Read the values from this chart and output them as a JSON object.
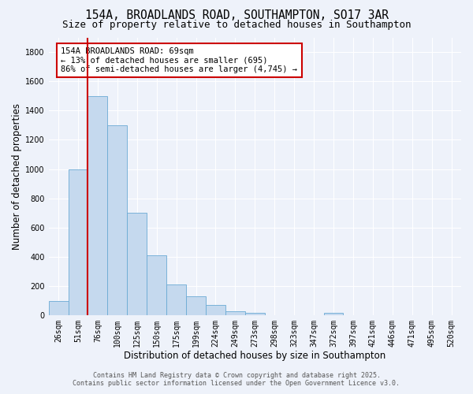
{
  "title": "154A, BROADLANDS ROAD, SOUTHAMPTON, SO17 3AR",
  "subtitle": "Size of property relative to detached houses in Southampton",
  "xlabel": "Distribution of detached houses by size in Southampton",
  "ylabel": "Number of detached properties",
  "bar_color": "#c5d9ee",
  "bar_edge_color": "#6aaad4",
  "background_color": "#eef2fa",
  "grid_color": "#ffffff",
  "categories": [
    "26sqm",
    "51sqm",
    "76sqm",
    "100sqm",
    "125sqm",
    "150sqm",
    "175sqm",
    "199sqm",
    "224sqm",
    "249sqm",
    "273sqm",
    "298sqm",
    "323sqm",
    "347sqm",
    "372sqm",
    "397sqm",
    "421sqm",
    "446sqm",
    "471sqm",
    "495sqm",
    "520sqm"
  ],
  "values": [
    100,
    1000,
    1500,
    1300,
    700,
    410,
    210,
    130,
    70,
    30,
    20,
    0,
    0,
    0,
    20,
    0,
    0,
    0,
    0,
    0,
    0
  ],
  "ylim": [
    0,
    1900
  ],
  "yticks": [
    0,
    200,
    400,
    600,
    800,
    1000,
    1200,
    1400,
    1600,
    1800
  ],
  "property_line_x": 1.5,
  "property_line_color": "#cc0000",
  "annotation_box_color": "#cc0000",
  "annotation_text_line1": "154A BROADLANDS ROAD: 69sqm",
  "annotation_text_line2": "← 13% of detached houses are smaller (695)",
  "annotation_text_line3": "86% of semi-detached houses are larger (4,745) →",
  "footer_line1": "Contains HM Land Registry data © Crown copyright and database right 2025.",
  "footer_line2": "Contains public sector information licensed under the Open Government Licence v3.0.",
  "title_fontsize": 10.5,
  "subtitle_fontsize": 9,
  "axis_label_fontsize": 8.5,
  "tick_fontsize": 7,
  "annotation_fontsize": 7.5,
  "footer_fontsize": 6
}
